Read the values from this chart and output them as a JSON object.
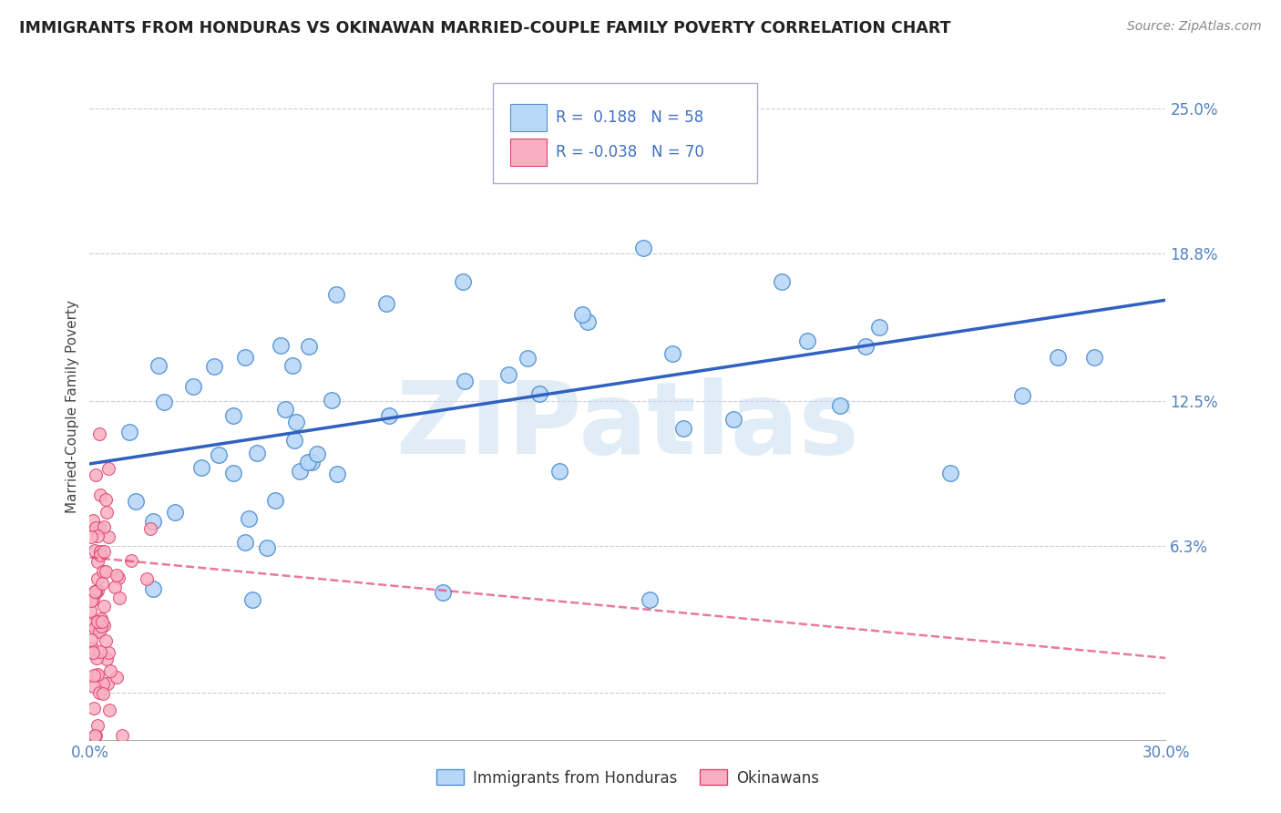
{
  "title": "IMMIGRANTS FROM HONDURAS VS OKINAWAN MARRIED-COUPLE FAMILY POVERTY CORRELATION CHART",
  "source": "Source: ZipAtlas.com",
  "ylabel": "Married-Couple Family Poverty",
  "x_min": 0.0,
  "x_max": 0.3,
  "y_min": -0.02,
  "y_max": 0.265,
  "y_ticks": [
    0.0,
    0.063,
    0.125,
    0.188,
    0.25
  ],
  "y_tick_labels": [
    "",
    "6.3%",
    "12.5%",
    "18.8%",
    "25.0%"
  ],
  "legend_entries": [
    {
      "label": "Immigrants from Honduras",
      "color": "#b8d8f8",
      "edge": "#5090d0",
      "R": "0.188",
      "N": "58"
    },
    {
      "label": "Okinawans",
      "color": "#f8b0c0",
      "edge": "#e04070",
      "R": "-0.038",
      "N": "70"
    }
  ],
  "blue_line_x0": 0.0,
  "blue_line_x1": 0.3,
  "blue_line_y0": 0.098,
  "blue_line_y1": 0.168,
  "pink_line_x0": 0.0,
  "pink_line_x1": 0.3,
  "pink_line_y0": 0.058,
  "pink_line_y1": 0.015,
  "watermark": "ZIPatlas",
  "watermark_color": "#c8ddf0",
  "bg_color": "#ffffff",
  "grid_color": "#ccccdd",
  "blue_dot_color": "#b8d8f8",
  "blue_dot_edge": "#5090d0",
  "pink_dot_color": "#f8b0c0",
  "pink_dot_edge": "#e04070",
  "blue_line_color": "#3060c0",
  "pink_line_color": "#e04070"
}
